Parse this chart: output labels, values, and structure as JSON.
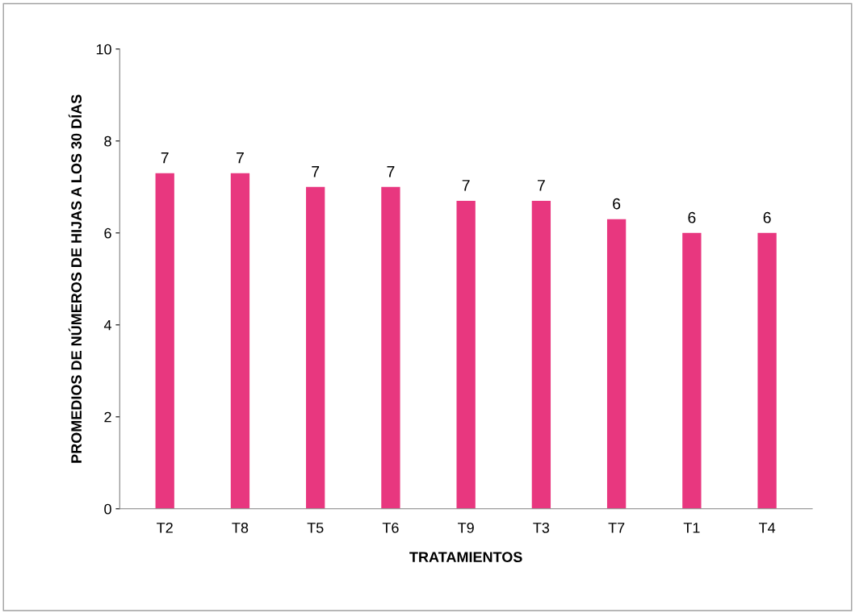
{
  "chart_data": {
    "type": "bar",
    "xlabel": "TRATAMIENTOS",
    "ylabel": "PROMEDIOS DE NÚMEROS DE HIJAS A LOS 30 DÍAS",
    "categories": [
      "T2",
      "T8",
      "T5",
      "T6",
      "T9",
      "T3",
      "T7",
      "T1",
      "T4"
    ],
    "values": [
      7.3,
      7.3,
      7.0,
      7.0,
      6.7,
      6.7,
      6.3,
      6.0,
      6.0
    ],
    "value_labels": [
      "7",
      "7",
      "7",
      "7",
      "7",
      "7",
      "6",
      "6",
      "6"
    ],
    "color": "#e8377f",
    "ylim": [
      0,
      10
    ],
    "yticks": [
      0,
      2,
      4,
      6,
      8,
      10
    ],
    "grid": false,
    "legend": false
  }
}
